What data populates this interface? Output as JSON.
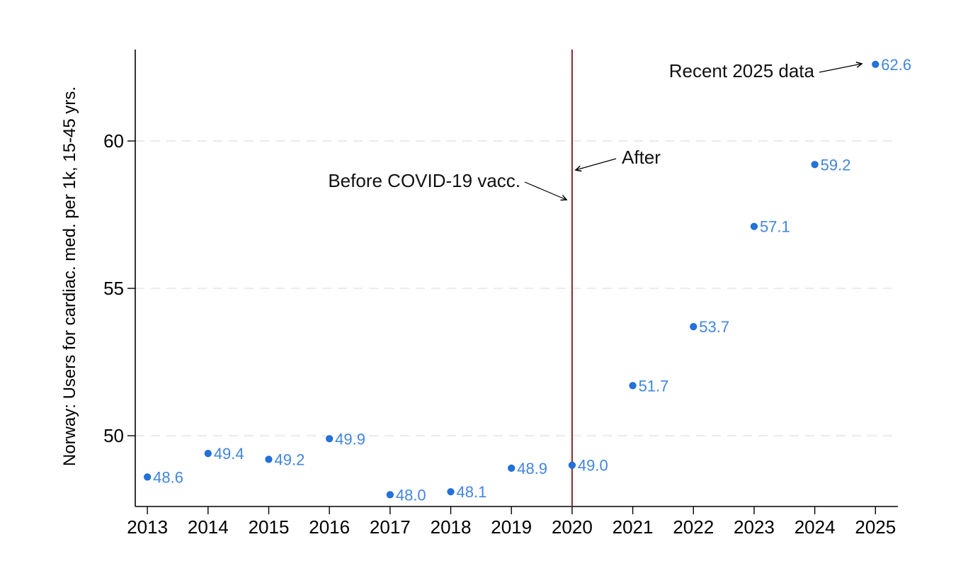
{
  "chart_data": {
    "type": "scatter",
    "title": "",
    "xlabel": "",
    "ylabel": "Norway: Users for cardiac. med. per 1k, 15-45 yrs.",
    "x": [
      2013,
      2014,
      2015,
      2016,
      2017,
      2018,
      2019,
      2020,
      2021,
      2022,
      2023,
      2024,
      2025
    ],
    "values": [
      48.6,
      49.4,
      49.2,
      49.9,
      48.0,
      48.1,
      48.9,
      49.0,
      51.7,
      53.7,
      57.1,
      59.2,
      62.6
    ],
    "point_labels": [
      "48.6",
      "49.4",
      "49.2",
      "49.9",
      "48.0",
      "48.1",
      "48.9",
      "49.0",
      "51.7",
      "53.7",
      "57.1",
      "59.2",
      "62.6"
    ],
    "xtick_labels": [
      "2013",
      "2014",
      "2015",
      "2016",
      "2017",
      "2018",
      "2019",
      "2020",
      "2021",
      "2022",
      "2023",
      "2024",
      "2025"
    ],
    "ytick_values": [
      50,
      55,
      60
    ],
    "ytick_labels": [
      "50",
      "55",
      "60"
    ],
    "xlim": [
      2012.8,
      2025.37
    ],
    "ylim": [
      47.6,
      63.1
    ],
    "grid": "horizontal dashed gridlines at y ticks",
    "legend": "none",
    "vline": {
      "x": 2020
    },
    "annotations": [
      {
        "id": "before",
        "text": "Before COVID-19 vacc."
      },
      {
        "id": "after",
        "text": "After"
      },
      {
        "id": "recent",
        "text": "Recent 2025 data"
      }
    ],
    "colors": {
      "marker": "#2273db",
      "marker_edge": "#1c63c4",
      "point_label": "#4285de",
      "vline": "#90353b",
      "grid": "#e3e3e3",
      "axis": "#000000",
      "background": "#ffffff"
    }
  }
}
